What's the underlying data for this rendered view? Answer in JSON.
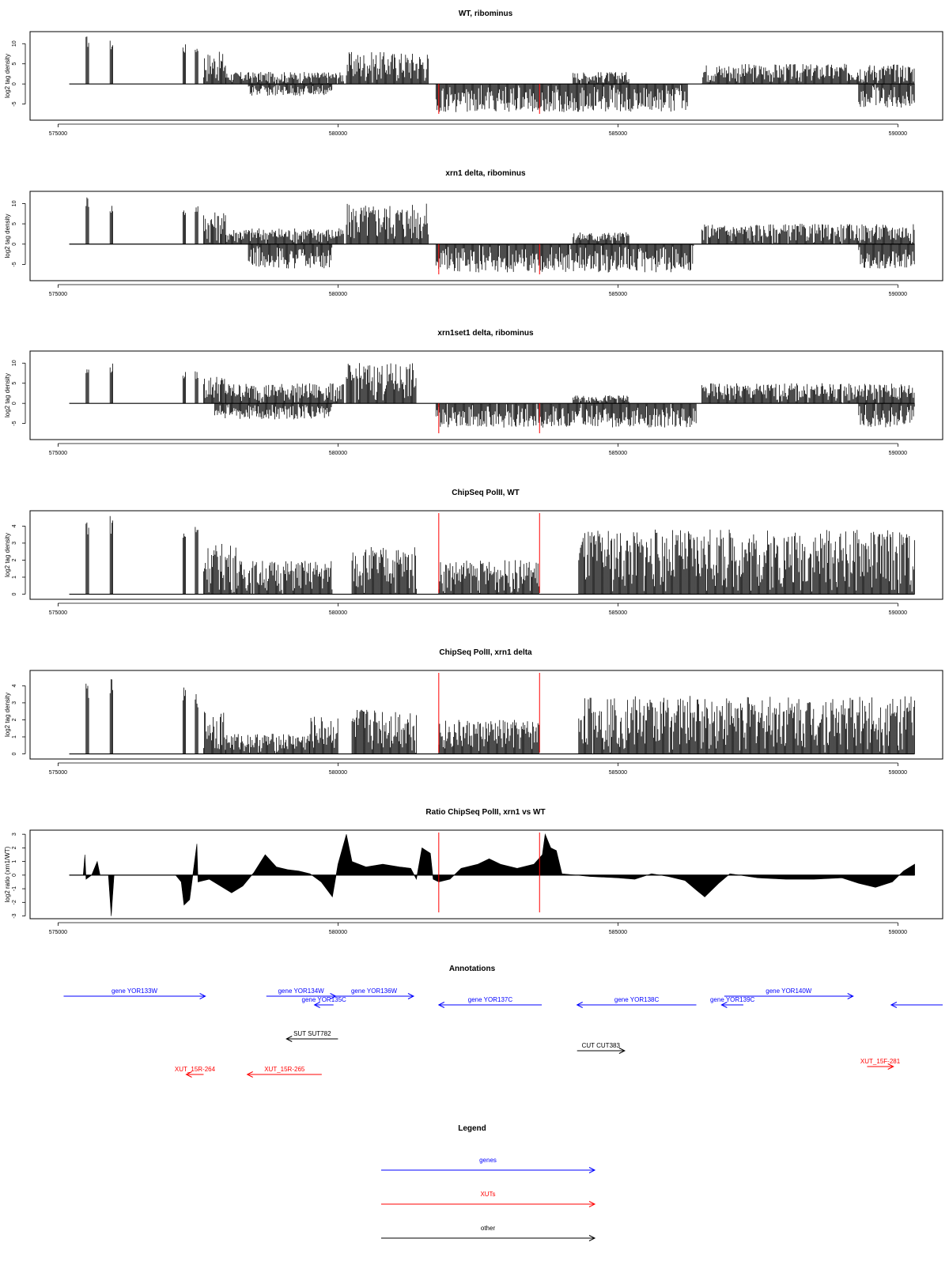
{
  "colors": {
    "gene": "#0000ff",
    "xut": "#ff0000",
    "other": "#000000",
    "trace": "#000000",
    "marker": "#ff0000"
  },
  "x_ticks": [
    "575000",
    "580000",
    "585000",
    "590000"
  ],
  "panels": [
    {
      "title": "WT, ribominus",
      "ylabel": "log2 tag density",
      "yticks": [
        "-5",
        "0",
        "5",
        "10"
      ]
    },
    {
      "title": "xrn1 delta, ribominus",
      "ylabel": "log2 tag density",
      "yticks": [
        "-5",
        "0",
        "5",
        "10"
      ]
    },
    {
      "title": "xrn1set1 delta, ribominus",
      "ylabel": "log2 tag density",
      "yticks": [
        "-5",
        "0",
        "5",
        "10"
      ]
    },
    {
      "title": "ChipSeq PolII, WT",
      "ylabel": "log2 tag density",
      "yticks": [
        "0",
        "1",
        "2",
        "3",
        "4"
      ]
    },
    {
      "title": "ChipSeq PolII, xrn1 delta",
      "ylabel": "log2 tag density",
      "yticks": [
        "0",
        "1",
        "2",
        "3",
        "4"
      ]
    },
    {
      "title": "Ratio ChipSeq PolII, xrn1 vs WT",
      "ylabel": "log2 ratio (xrn1/WT)",
      "yticks": [
        "-3",
        "-2",
        "-1",
        "0",
        "1",
        "2",
        "3"
      ]
    }
  ],
  "chart_data": [
    {
      "type": "bar",
      "title": "WT, ribominus",
      "xlabel": "",
      "ylabel": "log2 tag density",
      "xlim": [
        574500,
        590800
      ],
      "ylim": [
        -9,
        13
      ],
      "markers_x": [
        581800,
        583600
      ],
      "plus_segments": [
        {
          "x": [
            575500,
            575560
          ],
          "max": 12
        },
        {
          "x": [
            575930,
            575990
          ],
          "max": 11
        },
        {
          "x": [
            577230,
            577290
          ],
          "max": 10
        },
        {
          "x": [
            577450,
            577510
          ],
          "max": 10
        },
        {
          "x": [
            577600,
            578000
          ],
          "max": 8
        },
        {
          "x": [
            578000,
            580100
          ],
          "max": 3
        },
        {
          "x": [
            580150,
            581620
          ],
          "max": 8
        },
        {
          "x": [
            584200,
            585200
          ],
          "max": 3
        },
        {
          "x": [
            586500,
            590300
          ],
          "max": 5
        }
      ],
      "minus_segments": [
        {
          "x": [
            578400,
            579900
          ],
          "min": -3
        },
        {
          "x": [
            581750,
            586250
          ],
          "min": -7
        },
        {
          "x": [
            589300,
            590300
          ],
          "min": -6
        }
      ]
    },
    {
      "type": "bar",
      "title": "xrn1 delta, ribominus",
      "xlabel": "",
      "ylabel": "log2 tag density",
      "xlim": [
        574500,
        590800
      ],
      "ylim": [
        -9,
        13
      ],
      "markers_x": [
        581800,
        583600
      ],
      "plus_segments": [
        {
          "x": [
            575500,
            575560
          ],
          "max": 12
        },
        {
          "x": [
            575930,
            575990
          ],
          "max": 10
        },
        {
          "x": [
            577230,
            577290
          ],
          "max": 9
        },
        {
          "x": [
            577450,
            577510
          ],
          "max": 10
        },
        {
          "x": [
            577600,
            578000
          ],
          "max": 8
        },
        {
          "x": [
            578000,
            580100
          ],
          "max": 4
        },
        {
          "x": [
            580150,
            581620
          ],
          "max": 10
        },
        {
          "x": [
            584200,
            585200
          ],
          "max": 3
        },
        {
          "x": [
            586500,
            590300
          ],
          "max": 5
        }
      ],
      "minus_segments": [
        {
          "x": [
            578400,
            579900
          ],
          "min": -6
        },
        {
          "x": [
            581750,
            586350
          ],
          "min": -7
        },
        {
          "x": [
            589300,
            590300
          ],
          "min": -6
        }
      ]
    },
    {
      "type": "bar",
      "title": "xrn1set1 delta, ribominus",
      "xlabel": "",
      "ylabel": "log2 tag density",
      "xlim": [
        574500,
        590800
      ],
      "ylim": [
        -9,
        13
      ],
      "markers_x": [
        581800,
        583600
      ],
      "plus_segments": [
        {
          "x": [
            575500,
            575560
          ],
          "max": 9
        },
        {
          "x": [
            575930,
            575990
          ],
          "max": 10
        },
        {
          "x": [
            577230,
            577290
          ],
          "max": 8
        },
        {
          "x": [
            577450,
            577510
          ],
          "max": 8
        },
        {
          "x": [
            577600,
            578000
          ],
          "max": 7
        },
        {
          "x": [
            578000,
            580100
          ],
          "max": 5
        },
        {
          "x": [
            580150,
            581400
          ],
          "max": 10
        },
        {
          "x": [
            584200,
            585200
          ],
          "max": 2
        },
        {
          "x": [
            586500,
            590300
          ],
          "max": 5
        }
      ],
      "minus_segments": [
        {
          "x": [
            577800,
            579900
          ],
          "min": -4
        },
        {
          "x": [
            581750,
            586400
          ],
          "min": -6
        },
        {
          "x": [
            589300,
            590300
          ],
          "min": -6
        }
      ]
    },
    {
      "type": "bar",
      "title": "ChipSeq PolII, WT",
      "xlabel": "",
      "ylabel": "log2 tag density",
      "xlim": [
        574500,
        590800
      ],
      "ylim": [
        -0.3,
        4.9
      ],
      "markers_x": [
        581800,
        583600
      ],
      "plus_segments": [
        {
          "x": [
            575500,
            575560
          ],
          "max": 4.6
        },
        {
          "x": [
            575930,
            575990
          ],
          "max": 4.7
        },
        {
          "x": [
            577230,
            577290
          ],
          "max": 4.0
        },
        {
          "x": [
            577450,
            577510
          ],
          "max": 4.2
        },
        {
          "x": [
            577600,
            578200
          ],
          "max": 3.0
        },
        {
          "x": [
            578200,
            579900
          ],
          "max": 2.0
        },
        {
          "x": [
            580250,
            581400
          ],
          "max": 2.8
        },
        {
          "x": [
            581800,
            583600
          ],
          "max": 2.0
        },
        {
          "x": [
            584300,
            590300
          ],
          "max": 3.8
        }
      ],
      "minus_segments": []
    },
    {
      "type": "bar",
      "title": "ChipSeq PolII, xrn1 delta",
      "xlabel": "",
      "ylabel": "log2 tag density",
      "xlim": [
        574500,
        590800
      ],
      "ylim": [
        -0.3,
        4.9
      ],
      "markers_x": [
        581800,
        583600
      ],
      "plus_segments": [
        {
          "x": [
            575500,
            575560
          ],
          "max": 4.3
        },
        {
          "x": [
            575930,
            575990
          ],
          "max": 4.4
        },
        {
          "x": [
            577230,
            577290
          ],
          "max": 3.9
        },
        {
          "x": [
            577450,
            577510
          ],
          "max": 3.6
        },
        {
          "x": [
            577600,
            578000
          ],
          "max": 2.6
        },
        {
          "x": [
            578000,
            579500
          ],
          "max": 1.2
        },
        {
          "x": [
            579500,
            580000
          ],
          "max": 2.2
        },
        {
          "x": [
            580250,
            581400
          ],
          "max": 2.7
        },
        {
          "x": [
            581800,
            583600
          ],
          "max": 2.0
        },
        {
          "x": [
            584300,
            590300
          ],
          "max": 3.4
        }
      ],
      "minus_segments": []
    },
    {
      "type": "area",
      "title": "Ratio ChipSeq PolII, xrn1 vs WT",
      "xlabel": "",
      "ylabel": "log2 ratio (xrn1/WT)",
      "xlim": [
        574500,
        590800
      ],
      "ylim": [
        -3.2,
        3.3
      ],
      "markers_x": [
        581800,
        583600
      ],
      "profile": [
        [
          575200,
          0
        ],
        [
          575450,
          0
        ],
        [
          575480,
          1.5
        ],
        [
          575500,
          -0.3
        ],
        [
          575600,
          0
        ],
        [
          575700,
          1.0
        ],
        [
          575750,
          0
        ],
        [
          575900,
          0
        ],
        [
          575950,
          -3.0
        ],
        [
          576000,
          0
        ],
        [
          577100,
          0
        ],
        [
          577200,
          -0.5
        ],
        [
          577250,
          -2.2
        ],
        [
          577350,
          -1.8
        ],
        [
          577480,
          2.3
        ],
        [
          577500,
          -0.5
        ],
        [
          577700,
          -0.3
        ],
        [
          577900,
          -0.8
        ],
        [
          578100,
          -1.3
        ],
        [
          578300,
          -0.8
        ],
        [
          578500,
          0.2
        ],
        [
          578700,
          1.5
        ],
        [
          578900,
          0.6
        ],
        [
          579100,
          0.4
        ],
        [
          579300,
          0.3
        ],
        [
          579500,
          0.1
        ],
        [
          579700,
          -0.5
        ],
        [
          579900,
          -1.6
        ],
        [
          580000,
          0.8
        ],
        [
          580150,
          3.0
        ],
        [
          580250,
          1.0
        ],
        [
          580500,
          0.6
        ],
        [
          580800,
          0.8
        ],
        [
          581100,
          0.6
        ],
        [
          581300,
          0.5
        ],
        [
          581400,
          -0.3
        ],
        [
          581500,
          2.0
        ],
        [
          581650,
          1.6
        ],
        [
          581700,
          -0.3
        ],
        [
          581800,
          -0.5
        ],
        [
          582000,
          -0.3
        ],
        [
          582200,
          0.5
        ],
        [
          582500,
          0.8
        ],
        [
          582700,
          1.2
        ],
        [
          582900,
          0.8
        ],
        [
          583200,
          0.5
        ],
        [
          583500,
          0.8
        ],
        [
          583650,
          1.5
        ],
        [
          583700,
          3.0
        ],
        [
          583800,
          2.0
        ],
        [
          583900,
          1.8
        ],
        [
          584000,
          0.1
        ],
        [
          584500,
          -0.1
        ],
        [
          585000,
          -0.2
        ],
        [
          585300,
          -0.3
        ],
        [
          585600,
          0.1
        ],
        [
          585900,
          -0.1
        ],
        [
          586200,
          -0.4
        ],
        [
          586400,
          -1.1
        ],
        [
          586550,
          -1.6
        ],
        [
          586800,
          -0.6
        ],
        [
          587000,
          0.1
        ],
        [
          587500,
          -0.2
        ],
        [
          588000,
          -0.3
        ],
        [
          588500,
          -0.3
        ],
        [
          589000,
          -0.2
        ],
        [
          589300,
          -0.6
        ],
        [
          589600,
          -0.9
        ],
        [
          589900,
          -0.5
        ],
        [
          590100,
          0.3
        ],
        [
          590300,
          0.8
        ]
      ]
    }
  ],
  "annotations": {
    "title": "Annotations",
    "features": [
      {
        "label": "gene YOR133W",
        "type": "gene",
        "start": 575100,
        "end": 577630,
        "strand": "+",
        "row": 0
      },
      {
        "label": "gene YOR134W",
        "type": "gene",
        "start": 578720,
        "end": 579960,
        "strand": "+",
        "row": 0
      },
      {
        "label": "gene YOR135C",
        "type": "gene",
        "start": 579580,
        "end": 579920,
        "strand": "-",
        "row": 1
      },
      {
        "label": "gene YOR136W",
        "type": "gene",
        "start": 579940,
        "end": 581350,
        "strand": "+",
        "row": 0
      },
      {
        "label": "gene YOR137C",
        "type": "gene",
        "start": 581800,
        "end": 583640,
        "strand": "-",
        "row": 1
      },
      {
        "label": "gene YOR138C",
        "type": "gene",
        "start": 584270,
        "end": 586400,
        "strand": "-",
        "row": 1
      },
      {
        "label": "gene YOR139C",
        "type": "gene",
        "start": 586850,
        "end": 587240,
        "strand": "-",
        "row": 1
      },
      {
        "label": "gene YOR140W",
        "type": "gene",
        "start": 586900,
        "end": 589200,
        "strand": "+",
        "row": 0
      },
      {
        "label": "",
        "type": "gene",
        "start": 589880,
        "end": 590800,
        "strand": "-",
        "row": 1
      },
      {
        "label": "SUT SUT782",
        "type": "other",
        "start": 579080,
        "end": 580000,
        "strand": "-",
        "row": 2
      },
      {
        "label": "CUT CUT383",
        "type": "other",
        "start": 584270,
        "end": 585120,
        "strand": "+",
        "row": 3
      },
      {
        "label": "XUT_15F-281",
        "type": "xut",
        "start": 589450,
        "end": 589920,
        "strand": "+",
        "row": 4
      },
      {
        "label": "XUT_15R-264",
        "type": "xut",
        "start": 577290,
        "end": 577600,
        "strand": "-",
        "row": 5
      },
      {
        "label": "XUT_15R-265",
        "type": "xut",
        "start": 578380,
        "end": 579710,
        "strand": "-",
        "row": 5
      }
    ]
  },
  "legend": {
    "title": "Legend",
    "items": [
      {
        "label": "genes",
        "type": "gene"
      },
      {
        "label": "XUTs",
        "type": "xut"
      },
      {
        "label": "other",
        "type": "other"
      }
    ]
  }
}
